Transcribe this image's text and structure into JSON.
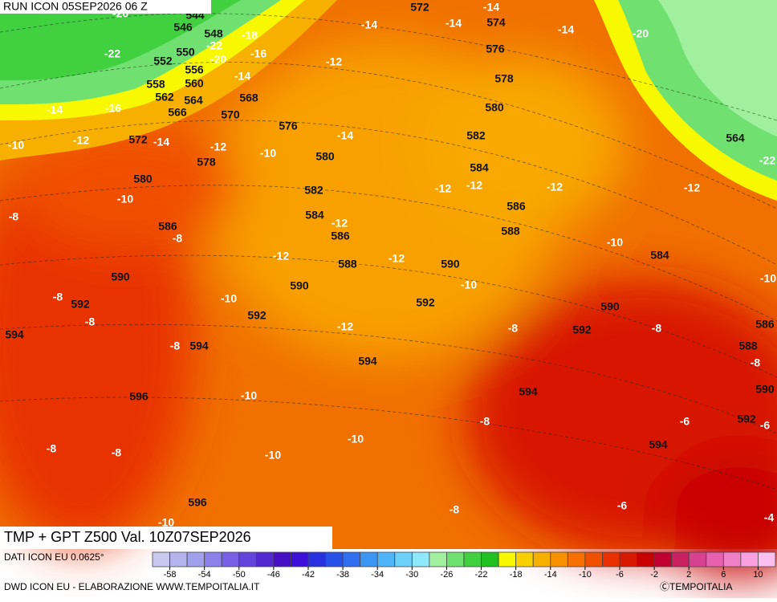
{
  "header": {
    "run": "RUN ICON 05SEP2026 06 Z",
    "title": "TMP + GPT Z500 Val. 10Z07SEP2026",
    "source": "DATI ICON EU 0.0625°",
    "credit": "DWD ICON EU - ELABORAZIONE WWW.TEMPOITALIA.IT",
    "copyright": "ⒸTEMPOITALIA"
  },
  "geopotential_labels": [
    544,
    546,
    548,
    550,
    552,
    556,
    558,
    560,
    562,
    564,
    566,
    568,
    570,
    572,
    574,
    576,
    576,
    578,
    580,
    582,
    584,
    572,
    578,
    580,
    580,
    582,
    584,
    586,
    586,
    586,
    588,
    588,
    590,
    590,
    590,
    592,
    592,
    592,
    590,
    584,
    592,
    594,
    594,
    594,
    594,
    596,
    596,
    594,
    592,
    588,
    586,
    590,
    564
  ],
  "temperature_labels": [
    -20,
    -14,
    -14,
    -14,
    -14,
    -20,
    -18,
    -22,
    -16,
    -22,
    -20,
    -12,
    -14,
    -16,
    -14,
    -14,
    -12,
    -14,
    -12,
    -10,
    -10,
    -12,
    -12,
    -12,
    -12,
    -22,
    -10,
    -8,
    -12,
    -8,
    -12,
    -12,
    -10,
    -10,
    -10,
    -8,
    -10,
    -8,
    -12,
    -8,
    -8,
    -8,
    -8,
    -10,
    -6,
    -6,
    -8,
    -10,
    -8,
    -8,
    -10,
    -10,
    -8,
    -6,
    -4
  ],
  "colorbar": {
    "ticks": [
      -58,
      -54,
      -50,
      -46,
      -42,
      -38,
      -34,
      -30,
      -26,
      -22,
      -18,
      -14,
      -10,
      -6,
      -2,
      2,
      6,
      10
    ],
    "colors": [
      "#c8c8f0",
      "#b4b4ee",
      "#a0a0ec",
      "#8c80ea",
      "#7860e6",
      "#6444dc",
      "#5428d0",
      "#4810c4",
      "#3c10d8",
      "#2830e0",
      "#2850e8",
      "#3070f0",
      "#3c96f4",
      "#50b4f8",
      "#6cd0fa",
      "#90e8fc",
      "#a0f0a0",
      "#70e070",
      "#40d040",
      "#20c020",
      "#f8f800",
      "#f8d000",
      "#f8b000",
      "#f89000",
      "#f87000",
      "#f05000",
      "#e83000",
      "#d81800",
      "#c80000",
      "#c00030",
      "#c82060",
      "#d84090",
      "#e860b0",
      "#f080c8",
      "#f8a0e0",
      "#fcc0f0"
    ]
  }
}
